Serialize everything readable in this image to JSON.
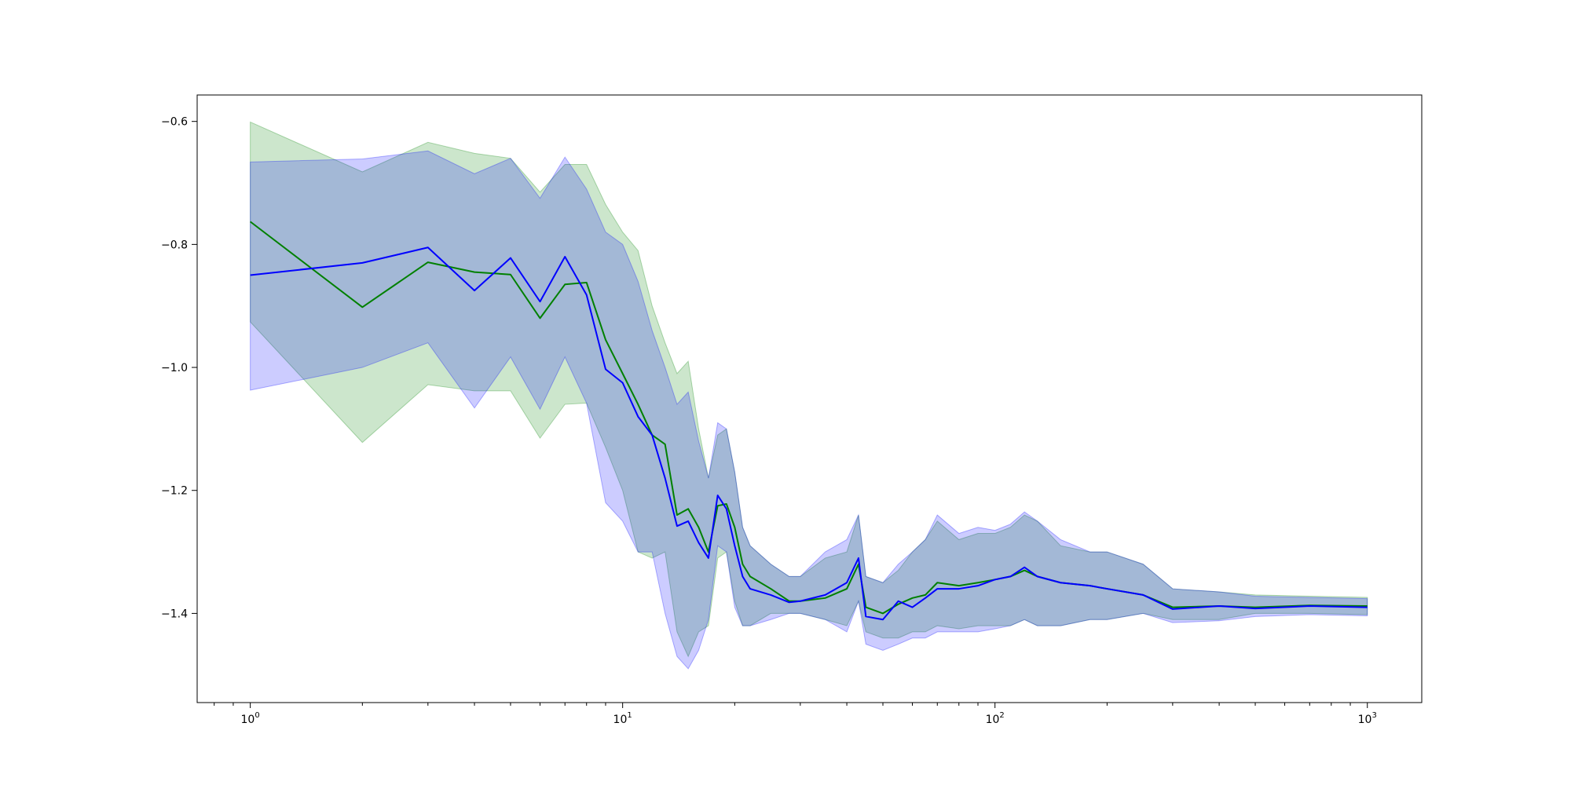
{
  "chart_data": {
    "type": "line",
    "title": "",
    "xlabel": "",
    "ylabel": "",
    "xscale": "log",
    "xlim": [
      0.72,
      1400
    ],
    "ylim": [
      -1.545,
      -0.557
    ],
    "grid": false,
    "x_ticks": [
      {
        "value": 1,
        "base": "10",
        "exp": "0"
      },
      {
        "value": 10,
        "base": "10",
        "exp": "1"
      },
      {
        "value": 100,
        "base": "10",
        "exp": "2"
      },
      {
        "value": 1000,
        "base": "10",
        "exp": "3"
      }
    ],
    "y_ticks": [
      {
        "value": -0.6,
        "label": "−0.6"
      },
      {
        "value": -0.8,
        "label": "−0.8"
      },
      {
        "value": -1.0,
        "label": "−1.0"
      },
      {
        "value": -1.2,
        "label": "−1.2"
      },
      {
        "value": -1.4,
        "label": "−1.4"
      }
    ],
    "series": [
      {
        "color": "#008000",
        "band_color": "#008000",
        "band_opacity": 0.2,
        "x": [
          1,
          2,
          3,
          4,
          5,
          6,
          7,
          8,
          9,
          10,
          11,
          12,
          13,
          14,
          15,
          16,
          17,
          18,
          19,
          20,
          21,
          22,
          25,
          28,
          30,
          35,
          40,
          43,
          45,
          50,
          55,
          60,
          65,
          70,
          80,
          90,
          100,
          110,
          120,
          130,
          150,
          180,
          200,
          250,
          300,
          400,
          500,
          700,
          1000
        ],
        "y": [
          -0.763,
          -0.902,
          -0.829,
          -0.845,
          -0.849,
          -0.92,
          -0.865,
          -0.862,
          -0.955,
          -1.01,
          -1.06,
          -1.11,
          -1.125,
          -1.24,
          -1.23,
          -1.26,
          -1.3,
          -1.225,
          -1.222,
          -1.26,
          -1.32,
          -1.34,
          -1.36,
          -1.38,
          -1.38,
          -1.375,
          -1.36,
          -1.32,
          -1.39,
          -1.4,
          -1.385,
          -1.375,
          -1.37,
          -1.35,
          -1.355,
          -1.35,
          -1.345,
          -1.34,
          -1.33,
          -1.34,
          -1.35,
          -1.355,
          -1.36,
          -1.37,
          -1.39,
          -1.388,
          -1.39,
          -1.387,
          -1.388
        ],
        "lower": [
          -0.926,
          -1.122,
          -1.028,
          -1.038,
          -1.038,
          -1.115,
          -1.06,
          -1.058,
          -1.13,
          -1.2,
          -1.3,
          -1.31,
          -1.3,
          -1.43,
          -1.47,
          -1.43,
          -1.42,
          -1.31,
          -1.3,
          -1.38,
          -1.42,
          -1.42,
          -1.4,
          -1.4,
          -1.4,
          -1.41,
          -1.42,
          -1.38,
          -1.43,
          -1.44,
          -1.44,
          -1.43,
          -1.43,
          -1.42,
          -1.425,
          -1.42,
          -1.42,
          -1.42,
          -1.41,
          -1.42,
          -1.42,
          -1.41,
          -1.41,
          -1.4,
          -1.41,
          -1.41,
          -1.4,
          -1.4,
          -1.402
        ],
        "upper": [
          -0.601,
          -0.682,
          -0.634,
          -0.652,
          -0.66,
          -0.715,
          -0.67,
          -0.67,
          -0.735,
          -0.78,
          -0.81,
          -0.9,
          -0.96,
          -1.01,
          -0.99,
          -1.1,
          -1.18,
          -1.11,
          -1.1,
          -1.17,
          -1.26,
          -1.29,
          -1.32,
          -1.34,
          -1.34,
          -1.31,
          -1.3,
          -1.24,
          -1.34,
          -1.35,
          -1.33,
          -1.3,
          -1.28,
          -1.25,
          -1.28,
          -1.27,
          -1.27,
          -1.26,
          -1.24,
          -1.25,
          -1.29,
          -1.3,
          -1.3,
          -1.32,
          -1.36,
          -1.365,
          -1.37,
          -1.372,
          -1.374
        ]
      },
      {
        "color": "#0000ff",
        "band_color": "#0000ff",
        "band_opacity": 0.2,
        "x": [
          1,
          2,
          3,
          4,
          5,
          6,
          7,
          8,
          9,
          10,
          11,
          12,
          13,
          14,
          15,
          16,
          17,
          18,
          19,
          20,
          21,
          22,
          25,
          28,
          30,
          35,
          40,
          43,
          45,
          50,
          55,
          60,
          65,
          70,
          80,
          90,
          100,
          110,
          120,
          130,
          150,
          180,
          200,
          250,
          300,
          400,
          500,
          700,
          1000
        ],
        "y": [
          -0.85,
          -0.83,
          -0.805,
          -0.875,
          -0.822,
          -0.893,
          -0.82,
          -0.882,
          -1.003,
          -1.025,
          -1.08,
          -1.11,
          -1.18,
          -1.258,
          -1.25,
          -1.285,
          -1.31,
          -1.208,
          -1.23,
          -1.29,
          -1.34,
          -1.36,
          -1.37,
          -1.382,
          -1.38,
          -1.37,
          -1.35,
          -1.31,
          -1.405,
          -1.41,
          -1.38,
          -1.39,
          -1.375,
          -1.36,
          -1.36,
          -1.355,
          -1.345,
          -1.34,
          -1.325,
          -1.34,
          -1.35,
          -1.355,
          -1.36,
          -1.37,
          -1.393,
          -1.388,
          -1.392,
          -1.388,
          -1.39
        ],
        "lower": [
          -1.037,
          -1.0,
          -0.96,
          -1.066,
          -0.983,
          -1.068,
          -0.983,
          -1.058,
          -1.22,
          -1.25,
          -1.3,
          -1.3,
          -1.4,
          -1.47,
          -1.49,
          -1.46,
          -1.41,
          -1.29,
          -1.3,
          -1.39,
          -1.42,
          -1.42,
          -1.41,
          -1.4,
          -1.4,
          -1.41,
          -1.43,
          -1.38,
          -1.45,
          -1.46,
          -1.45,
          -1.44,
          -1.44,
          -1.43,
          -1.43,
          -1.43,
          -1.425,
          -1.42,
          -1.41,
          -1.42,
          -1.42,
          -1.41,
          -1.41,
          -1.4,
          -1.415,
          -1.412,
          -1.405,
          -1.402,
          -1.404
        ],
        "upper": [
          -0.666,
          -0.661,
          -0.648,
          -0.685,
          -0.66,
          -0.725,
          -0.658,
          -0.71,
          -0.78,
          -0.8,
          -0.86,
          -0.94,
          -1.0,
          -1.06,
          -1.04,
          -1.12,
          -1.18,
          -1.09,
          -1.1,
          -1.17,
          -1.26,
          -1.29,
          -1.32,
          -1.34,
          -1.34,
          -1.3,
          -1.28,
          -1.24,
          -1.34,
          -1.35,
          -1.32,
          -1.3,
          -1.28,
          -1.24,
          -1.27,
          -1.26,
          -1.265,
          -1.255,
          -1.235,
          -1.25,
          -1.28,
          -1.3,
          -1.3,
          -1.32,
          -1.36,
          -1.365,
          -1.372,
          -1.374,
          -1.376
        ]
      }
    ]
  }
}
